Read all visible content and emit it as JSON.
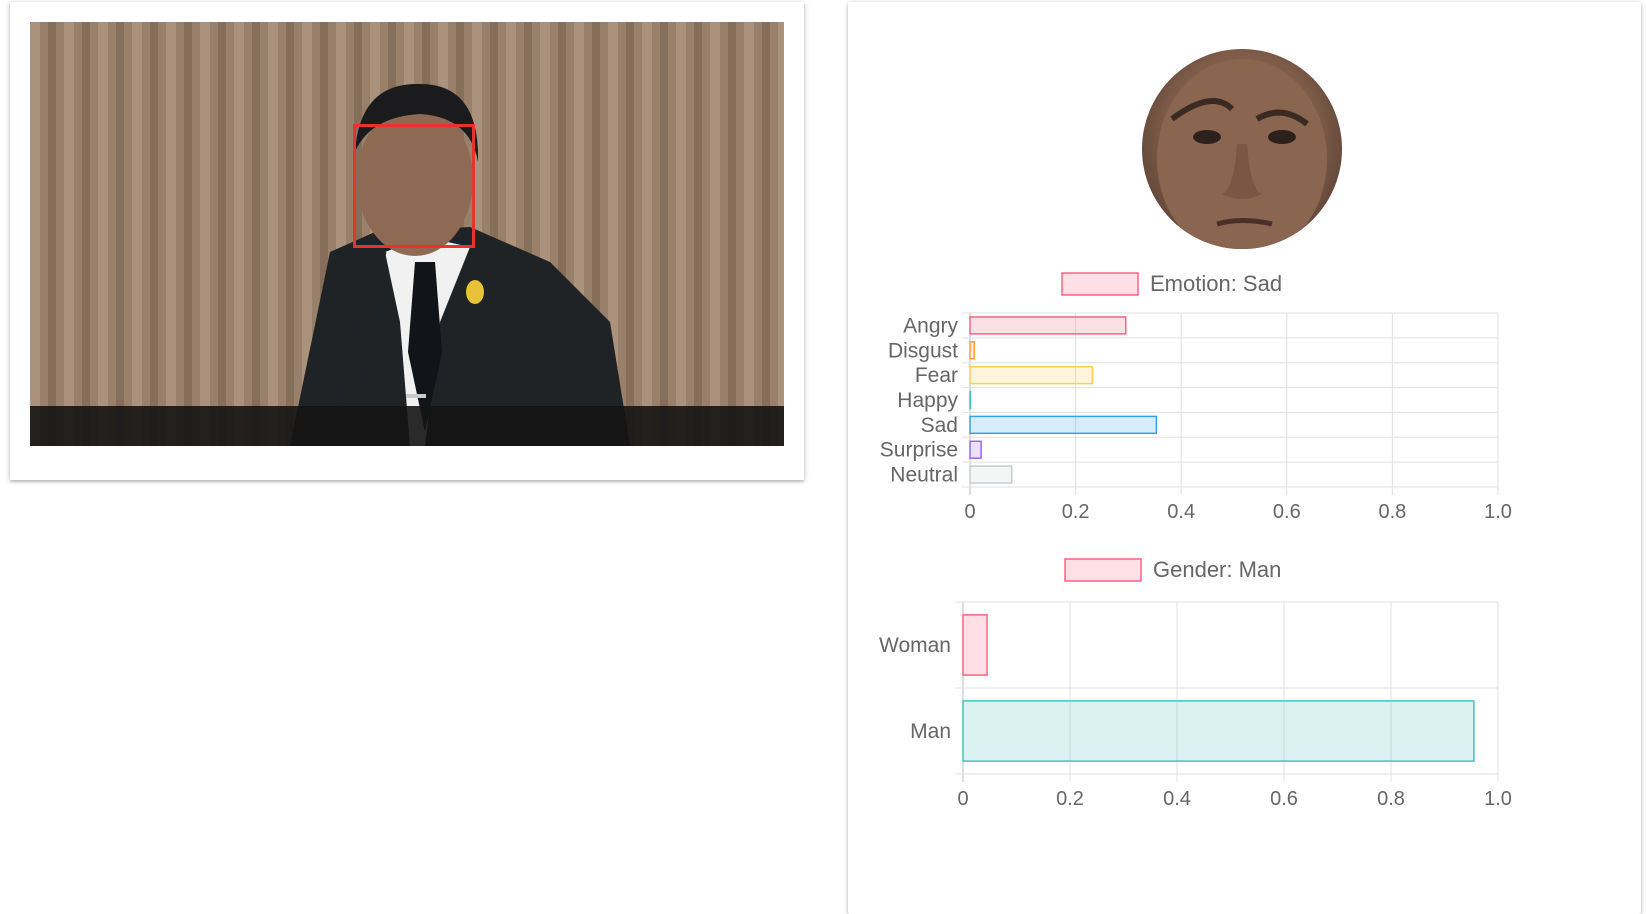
{
  "colors": {
    "angry": "#ff6384",
    "disgust": "#ff9f40",
    "fear": "#ffcd56",
    "happy": "#4bc0c0",
    "sad": "#36a2eb",
    "surprise": "#9966ff",
    "neutral": "#c9cbcf",
    "woman": "#ff6384",
    "man": "#4bc0c0",
    "face_box": "#e8322b",
    "grid": "#e0e0e0",
    "text": "#666666"
  },
  "chart_data": [
    {
      "type": "bar",
      "orientation": "horizontal",
      "title": "Emotion: Sad",
      "categories": [
        "Angry",
        "Disgust",
        "Fear",
        "Happy",
        "Sad",
        "Surprise",
        "Neutral"
      ],
      "values": [
        0.295,
        0.008,
        0.232,
        0.0,
        0.353,
        0.021,
        0.079
      ],
      "xlim": [
        0,
        1.0
      ],
      "xticks": [
        "0",
        "0.2",
        "0.4",
        "0.6",
        "0.8",
        "1.0"
      ],
      "legend_position": "top",
      "grid": true
    },
    {
      "type": "bar",
      "orientation": "horizontal",
      "title": "Gender: Man",
      "categories": [
        "Woman",
        "Man"
      ],
      "values": [
        0.045,
        0.955
      ],
      "xlim": [
        0,
        1.0
      ],
      "xticks": [
        "0",
        "0.2",
        "0.4",
        "0.6",
        "0.8",
        "1.0"
      ],
      "legend_position": "top",
      "grid": true
    }
  ]
}
